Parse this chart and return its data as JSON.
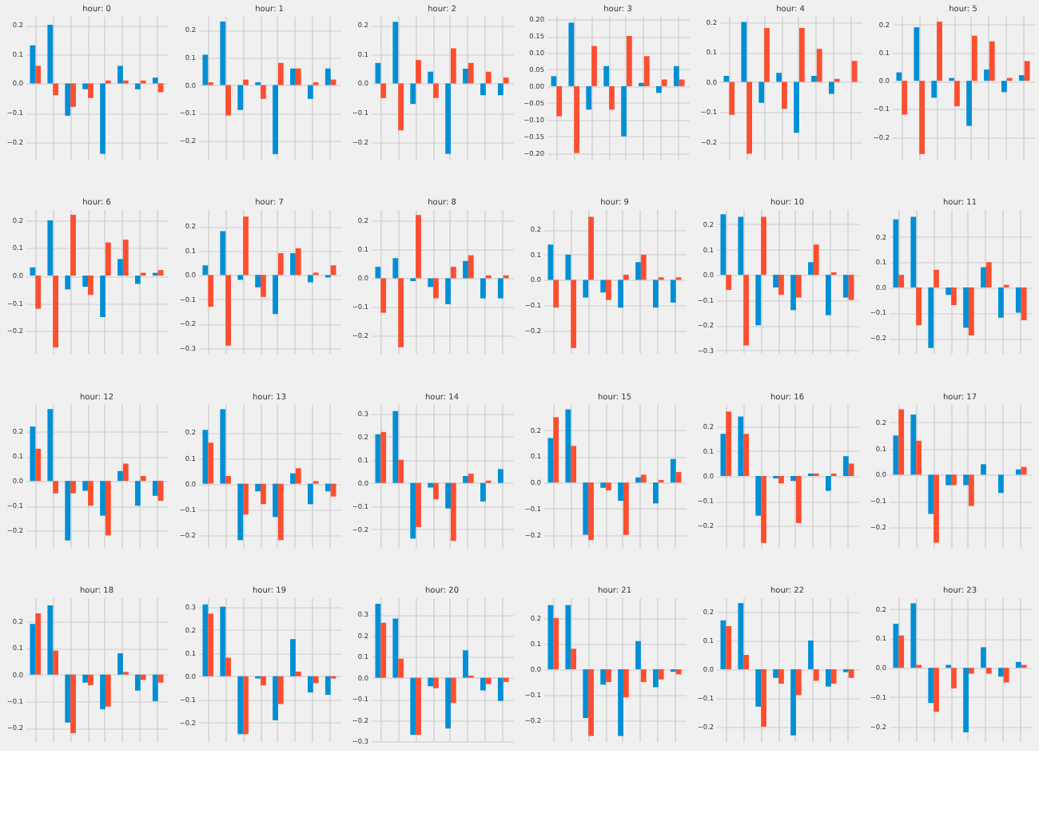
{
  "chart_data": [
    {
      "type": "bar",
      "title": "hour: 0",
      "categories": [
        null,
        null,
        null,
        null,
        null,
        null,
        null,
        null
      ],
      "series": [
        {
          "color": "#008fd5",
          "values": [
            0.13,
            0.2,
            -0.11,
            -0.02,
            -0.24,
            0.06,
            -0.02,
            0.02
          ]
        },
        {
          "color": "#fc4f30",
          "values": [
            0.06,
            -0.04,
            -0.08,
            -0.05,
            0.01,
            0.01,
            0.01,
            -0.03
          ]
        }
      ],
      "ylim": [
        -0.26,
        0.23
      ],
      "yticks": [
        {
          "value": -0.2,
          "label": "−0.2"
        },
        {
          "value": -0.1,
          "label": "−0.1"
        },
        {
          "value": 0,
          "label": "0.0"
        },
        0.1,
        0.2
      ],
      "grid": true
    },
    {
      "type": "bar",
      "title": "hour: 1",
      "categories": [
        null,
        null,
        null,
        null,
        null,
        null,
        null,
        null
      ],
      "series": [
        {
          "color": "#008fd5",
          "values": [
            0.11,
            0.23,
            -0.09,
            0.01,
            -0.25,
            0.06,
            -0.05,
            0.06
          ]
        },
        {
          "color": "#fc4f30",
          "values": [
            0.01,
            -0.11,
            0.02,
            -0.05,
            0.08,
            0.06,
            0.01,
            0.02
          ]
        }
      ],
      "ylim": [
        -0.27,
        0.25
      ],
      "yticks": [
        {
          "value": -0.2,
          "label": "−0.2"
        },
        {
          "value": -0.1,
          "label": "−0.1"
        },
        {
          "value": 0,
          "label": "0.0"
        },
        0.1,
        0.2
      ],
      "grid": true
    },
    {
      "type": "bar",
      "title": "hour: 2",
      "categories": [
        null,
        null,
        null,
        null,
        null,
        null,
        null,
        null
      ],
      "series": [
        {
          "color": "#008fd5",
          "values": [
            0.07,
            0.21,
            -0.07,
            0.04,
            -0.24,
            0.05,
            -0.04,
            -0.04
          ]
        },
        {
          "color": "#fc4f30",
          "values": [
            -0.05,
            -0.16,
            0.08,
            -0.05,
            0.12,
            0.07,
            0.04,
            0.02
          ]
        }
      ],
      "ylim": [
        -0.26,
        0.23
      ],
      "yticks": [
        {
          "value": -0.2,
          "label": "−0.2"
        },
        {
          "value": -0.1,
          "label": "−0.1"
        },
        {
          "value": 0,
          "label": "0.0"
        },
        0.1,
        0.2
      ],
      "grid": true
    },
    {
      "type": "bar",
      "title": "hour: 3",
      "categories": [
        null,
        null,
        null,
        null,
        null,
        null,
        null,
        null
      ],
      "series": [
        {
          "color": "#008fd5",
          "values": [
            0.03,
            0.19,
            -0.07,
            0.06,
            -0.15,
            0.01,
            -0.02,
            0.06
          ]
        },
        {
          "color": "#fc4f30",
          "values": [
            -0.09,
            -0.2,
            0.12,
            -0.07,
            0.15,
            0.09,
            0.02,
            0.02
          ]
        }
      ],
      "ylim": [
        -0.22,
        0.21
      ],
      "yticks": [
        {
          "value": -0.2,
          "label": "−0.20"
        },
        {
          "value": -0.15,
          "label": "−0.15"
        },
        {
          "value": -0.1,
          "label": "−0.10"
        },
        {
          "value": -0.05,
          "label": "−0.05"
        },
        {
          "value": 0,
          "label": "0.00"
        },
        0.05,
        {
          "value": 0.1,
          "label": "0.10"
        },
        0.15,
        {
          "value": 0.2,
          "label": "0.20"
        }
      ],
      "grid": true
    },
    {
      "type": "bar",
      "title": "hour: 4",
      "categories": [
        null,
        null,
        null,
        null,
        null,
        null,
        null,
        null
      ],
      "series": [
        {
          "color": "#008fd5",
          "values": [
            0.02,
            0.2,
            -0.07,
            0.03,
            -0.17,
            0.02,
            -0.04,
            0
          ]
        },
        {
          "color": "#fc4f30",
          "values": [
            -0.11,
            -0.24,
            0.18,
            -0.09,
            0.18,
            0.11,
            0.01,
            0.07
          ]
        }
      ],
      "ylim": [
        -0.26,
        0.22
      ],
      "yticks": [
        {
          "value": -0.2,
          "label": "−0.2"
        },
        {
          "value": -0.1,
          "label": "−0.1"
        },
        {
          "value": 0,
          "label": "0.0"
        },
        0.1,
        0.2
      ],
      "grid": true
    },
    {
      "type": "bar",
      "title": "hour: 5",
      "categories": [
        null,
        null,
        null,
        null,
        null,
        null,
        null,
        null
      ],
      "series": [
        {
          "color": "#008fd5",
          "values": [
            0.03,
            0.19,
            -0.06,
            0.01,
            -0.16,
            0.04,
            -0.04,
            0.02
          ]
        },
        {
          "color": "#fc4f30",
          "values": [
            -0.12,
            -0.26,
            0.21,
            -0.09,
            0.16,
            0.14,
            0.01,
            0.07
          ]
        }
      ],
      "ylim": [
        -0.28,
        0.23
      ],
      "yticks": [
        {
          "value": -0.2,
          "label": "−0.2"
        },
        {
          "value": -0.1,
          "label": "−0.1"
        },
        {
          "value": 0,
          "label": "0.0"
        },
        0.1,
        0.2
      ],
      "grid": true
    },
    {
      "type": "bar",
      "title": "hour: 6",
      "categories": [
        null,
        null,
        null,
        null,
        null,
        null,
        null,
        null
      ],
      "series": [
        {
          "color": "#008fd5",
          "values": [
            0.03,
            0.2,
            -0.05,
            -0.04,
            -0.15,
            0.06,
            -0.03,
            0.01
          ]
        },
        {
          "color": "#fc4f30",
          "values": [
            -0.12,
            -0.26,
            0.22,
            -0.07,
            0.12,
            0.13,
            0.01,
            0.02
          ]
        }
      ],
      "ylim": [
        -0.28,
        0.24
      ],
      "yticks": [
        {
          "value": -0.2,
          "label": "−0.2"
        },
        {
          "value": -0.1,
          "label": "−0.1"
        },
        {
          "value": 0,
          "label": "0.0"
        },
        0.1,
        0.2
      ],
      "grid": true
    },
    {
      "type": "bar",
      "title": "hour: 7",
      "categories": [
        null,
        null,
        null,
        null,
        null,
        null,
        null,
        null
      ],
      "series": [
        {
          "color": "#008fd5",
          "values": [
            0.04,
            0.18,
            -0.02,
            -0.05,
            -0.16,
            0.09,
            -0.03,
            -0.01
          ]
        },
        {
          "color": "#fc4f30",
          "values": [
            -0.13,
            -0.29,
            0.24,
            -0.09,
            0.09,
            0.11,
            0.01,
            0.04
          ]
        }
      ],
      "ylim": [
        -0.32,
        0.27
      ],
      "yticks": [
        {
          "value": -0.3,
          "label": "−0.3"
        },
        {
          "value": -0.2,
          "label": "−0.2"
        },
        {
          "value": -0.1,
          "label": "−0.1"
        },
        {
          "value": 0,
          "label": "0.0"
        },
        0.1,
        0.2
      ],
      "grid": true
    },
    {
      "type": "bar",
      "title": "hour: 8",
      "categories": [
        null,
        null,
        null,
        null,
        null,
        null,
        null,
        null
      ],
      "series": [
        {
          "color": "#008fd5",
          "values": [
            0.04,
            0.07,
            -0.01,
            -0.03,
            -0.09,
            0.06,
            -0.07,
            -0.07
          ]
        },
        {
          "color": "#fc4f30",
          "values": [
            -0.12,
            -0.24,
            0.22,
            -0.07,
            0.04,
            0.08,
            0.01,
            0.01
          ]
        }
      ],
      "ylim": [
        -0.26,
        0.24
      ],
      "yticks": [
        {
          "value": -0.2,
          "label": "−0.2"
        },
        {
          "value": -0.1,
          "label": "−0.1"
        },
        {
          "value": 0,
          "label": "0.0"
        },
        0.1,
        0.2
      ],
      "grid": true
    },
    {
      "type": "bar",
      "title": "hour: 9",
      "categories": [
        null,
        null,
        null,
        null,
        null,
        null,
        null,
        null
      ],
      "series": [
        {
          "color": "#008fd5",
          "values": [
            0.14,
            0.1,
            -0.07,
            -0.05,
            -0.11,
            0.07,
            -0.11,
            -0.09
          ]
        },
        {
          "color": "#fc4f30",
          "values": [
            -0.11,
            -0.27,
            0.25,
            -0.08,
            0.02,
            0.1,
            0.01,
            0.01
          ]
        }
      ],
      "ylim": [
        -0.29,
        0.28
      ],
      "yticks": [
        {
          "value": -0.2,
          "label": "−0.2"
        },
        {
          "value": -0.1,
          "label": "−0.1"
        },
        {
          "value": 0,
          "label": "0.0"
        },
        0.1,
        0.2
      ],
      "grid": true
    },
    {
      "type": "bar",
      "title": "hour: 10",
      "categories": [
        null,
        null,
        null,
        null,
        null,
        null,
        null,
        null
      ],
      "series": [
        {
          "color": "#008fd5",
          "values": [
            0.24,
            0.23,
            -0.2,
            -0.05,
            -0.14,
            0.05,
            -0.16,
            -0.09
          ]
        },
        {
          "color": "#fc4f30",
          "values": [
            -0.06,
            -0.28,
            0.23,
            -0.08,
            -0.09,
            0.12,
            0.01,
            -0.1
          ]
        }
      ],
      "ylim": [
        -0.31,
        0.26
      ],
      "yticks": [
        {
          "value": -0.3,
          "label": "−0.3"
        },
        {
          "value": -0.2,
          "label": "−0.2"
        },
        {
          "value": -0.1,
          "label": "−0.1"
        },
        {
          "value": 0,
          "label": "0.0"
        },
        0.1,
        0.2
      ],
      "grid": true
    },
    {
      "type": "bar",
      "title": "hour: 11",
      "categories": [
        null,
        null,
        null,
        null,
        null,
        null,
        null,
        null
      ],
      "series": [
        {
          "color": "#008fd5",
          "values": [
            0.27,
            0.28,
            -0.24,
            -0.03,
            -0.16,
            0.08,
            -0.12,
            -0.1
          ]
        },
        {
          "color": "#fc4f30",
          "values": [
            0.05,
            -0.15,
            0.07,
            -0.07,
            -0.19,
            0.1,
            0.01,
            -0.13
          ]
        }
      ],
      "ylim": [
        -0.26,
        0.31
      ],
      "yticks": [
        {
          "value": -0.2,
          "label": "−0.2"
        },
        {
          "value": -0.1,
          "label": "−0.1"
        },
        {
          "value": 0,
          "label": "0.0"
        },
        0.1,
        0.2
      ],
      "grid": true
    },
    {
      "type": "bar",
      "title": "hour: 12",
      "categories": [
        null,
        null,
        null,
        null,
        null,
        null,
        null,
        null
      ],
      "series": [
        {
          "color": "#008fd5",
          "values": [
            0.22,
            0.29,
            -0.24,
            -0.04,
            -0.14,
            0.04,
            -0.1,
            -0.06
          ]
        },
        {
          "color": "#fc4f30",
          "values": [
            0.13,
            -0.05,
            -0.05,
            -0.1,
            -0.22,
            0.07,
            0.02,
            -0.08
          ]
        }
      ],
      "ylim": [
        -0.27,
        0.31
      ],
      "yticks": [
        {
          "value": -0.2,
          "label": "−0.2"
        },
        {
          "value": -0.1,
          "label": "−0.1"
        },
        {
          "value": 0,
          "label": "0.0"
        },
        0.1,
        0.2
      ],
      "grid": true
    },
    {
      "type": "bar",
      "title": "hour: 13",
      "categories": [
        null,
        null,
        null,
        null,
        null,
        null,
        null,
        null
      ],
      "series": [
        {
          "color": "#008fd5",
          "values": [
            0.21,
            0.29,
            -0.22,
            -0.03,
            -0.13,
            0.04,
            -0.08,
            -0.03
          ]
        },
        {
          "color": "#fc4f30",
          "values": [
            0.16,
            0.03,
            -0.12,
            -0.08,
            -0.22,
            0.06,
            0.01,
            -0.05
          ]
        }
      ],
      "ylim": [
        -0.25,
        0.31
      ],
      "yticks": [
        {
          "value": -0.2,
          "label": "−0.2"
        },
        {
          "value": -0.1,
          "label": "−0.1"
        },
        {
          "value": 0,
          "label": "0.0"
        },
        0.1,
        0.2
      ],
      "grid": true
    },
    {
      "type": "bar",
      "title": "hour: 14",
      "categories": [
        null,
        null,
        null,
        null,
        null,
        null,
        null,
        null
      ],
      "series": [
        {
          "color": "#008fd5",
          "values": [
            0.21,
            0.31,
            -0.24,
            -0.02,
            -0.11,
            0.03,
            -0.08,
            0.06
          ]
        },
        {
          "color": "#fc4f30",
          "values": [
            0.22,
            0.1,
            -0.19,
            -0.07,
            -0.25,
            0.04,
            0.01,
            0
          ]
        }
      ],
      "ylim": [
        -0.28,
        0.34
      ],
      "yticks": [
        {
          "value": -0.2,
          "label": "−0.2"
        },
        {
          "value": -0.1,
          "label": "−0.1"
        },
        {
          "value": 0,
          "label": "0.0"
        },
        0.1,
        0.2,
        0.3
      ],
      "grid": true
    },
    {
      "type": "bar",
      "title": "hour: 15",
      "categories": [
        null,
        null,
        null,
        null,
        null,
        null,
        null,
        null
      ],
      "series": [
        {
          "color": "#008fd5",
          "values": [
            0.17,
            0.28,
            -0.2,
            -0.02,
            -0.07,
            0.02,
            -0.08,
            0.09
          ]
        },
        {
          "color": "#fc4f30",
          "values": [
            0.25,
            0.14,
            -0.22,
            -0.03,
            -0.2,
            0.03,
            0.01,
            0.04
          ]
        }
      ],
      "ylim": [
        -0.25,
        0.3
      ],
      "yticks": [
        {
          "value": -0.2,
          "label": "−0.2"
        },
        {
          "value": -0.1,
          "label": "−0.1"
        },
        {
          "value": 0,
          "label": "0.0"
        },
        0.1,
        0.2
      ],
      "grid": true
    },
    {
      "type": "bar",
      "title": "hour: 16",
      "categories": [
        null,
        null,
        null,
        null,
        null,
        null,
        null,
        null
      ],
      "series": [
        {
          "color": "#008fd5",
          "values": [
            0.17,
            0.24,
            -0.16,
            -0.01,
            -0.02,
            0.01,
            -0.06,
            0.08
          ]
        },
        {
          "color": "#fc4f30",
          "values": [
            0.26,
            0.17,
            -0.27,
            -0.03,
            -0.19,
            0.01,
            0.01,
            0.05
          ]
        }
      ],
      "ylim": [
        -0.29,
        0.29
      ],
      "yticks": [
        {
          "value": -0.2,
          "label": "−0.2"
        },
        {
          "value": -0.1,
          "label": "−0.1"
        },
        {
          "value": 0,
          "label": "0.0"
        },
        0.1,
        0.2
      ],
      "grid": true
    },
    {
      "type": "bar",
      "title": "hour: 17",
      "categories": [
        null,
        null,
        null,
        null,
        null,
        null,
        null,
        null
      ],
      "series": [
        {
          "color": "#008fd5",
          "values": [
            0.15,
            0.23,
            -0.15,
            -0.04,
            -0.04,
            0.04,
            -0.07,
            0.02
          ]
        },
        {
          "color": "#fc4f30",
          "values": [
            0.25,
            0.13,
            -0.26,
            -0.04,
            -0.12,
            0,
            0,
            0.03
          ]
        }
      ],
      "ylim": [
        -0.28,
        0.27
      ],
      "yticks": [
        {
          "value": -0.2,
          "label": "−0.2"
        },
        {
          "value": -0.1,
          "label": "−0.1"
        },
        {
          "value": 0,
          "label": "0.0"
        },
        0.1,
        0.2
      ],
      "grid": true
    },
    {
      "type": "bar",
      "title": "hour: 18",
      "categories": [
        null,
        null,
        null,
        null,
        null,
        null,
        null,
        null
      ],
      "series": [
        {
          "color": "#008fd5",
          "values": [
            0.19,
            0.26,
            -0.18,
            -0.03,
            -0.13,
            0.08,
            -0.06,
            -0.1
          ]
        },
        {
          "color": "#fc4f30",
          "values": [
            0.23,
            0.09,
            -0.22,
            -0.04,
            -0.12,
            0.01,
            -0.02,
            -0.03
          ]
        }
      ],
      "ylim": [
        -0.25,
        0.29
      ],
      "yticks": [
        {
          "value": -0.2,
          "label": "−0.2"
        },
        {
          "value": -0.1,
          "label": "−0.1"
        },
        {
          "value": 0,
          "label": "0.0"
        },
        0.1,
        0.2
      ],
      "grid": true
    },
    {
      "type": "bar",
      "title": "hour: 19",
      "categories": [
        null,
        null,
        null,
        null,
        null,
        null,
        null,
        null
      ],
      "series": [
        {
          "color": "#008fd5",
          "values": [
            0.31,
            0.3,
            -0.25,
            -0.01,
            -0.19,
            0.16,
            -0.07,
            -0.08
          ]
        },
        {
          "color": "#fc4f30",
          "values": [
            0.27,
            0.08,
            -0.25,
            -0.04,
            -0.12,
            0.02,
            -0.03,
            -0.01
          ]
        }
      ],
      "ylim": [
        -0.28,
        0.34
      ],
      "yticks": [
        {
          "value": -0.2,
          "label": "−0.2"
        },
        {
          "value": -0.1,
          "label": "−0.1"
        },
        {
          "value": 0,
          "label": "0.0"
        },
        0.1,
        0.2,
        0.3
      ],
      "grid": true
    },
    {
      "type": "bar",
      "title": "hour: 20",
      "categories": [
        null,
        null,
        null,
        null,
        null,
        null,
        null,
        null
      ],
      "series": [
        {
          "color": "#008fd5",
          "values": [
            0.35,
            0.28,
            -0.27,
            -0.04,
            -0.24,
            0.13,
            -0.06,
            -0.11
          ]
        },
        {
          "color": "#fc4f30",
          "values": [
            0.26,
            0.09,
            -0.27,
            -0.05,
            -0.12,
            0.01,
            -0.03,
            -0.02
          ]
        }
      ],
      "ylim": [
        -0.3,
        0.38
      ],
      "yticks": [
        {
          "value": -0.3,
          "label": "−0.3"
        },
        {
          "value": -0.2,
          "label": "−0.2"
        },
        {
          "value": -0.1,
          "label": "−0.1"
        },
        {
          "value": 0,
          "label": "0.0"
        },
        0.1,
        0.2,
        0.3
      ],
      "grid": true
    },
    {
      "type": "bar",
      "title": "hour: 21",
      "categories": [
        null,
        null,
        null,
        null,
        null,
        null,
        null,
        null
      ],
      "series": [
        {
          "color": "#008fd5",
          "values": [
            0.25,
            0.25,
            -0.19,
            -0.06,
            -0.26,
            0.11,
            -0.07,
            -0.01
          ]
        },
        {
          "color": "#fc4f30",
          "values": [
            0.2,
            0.08,
            -0.26,
            -0.05,
            -0.11,
            -0.05,
            -0.04,
            -0.02
          ]
        }
      ],
      "ylim": [
        -0.28,
        0.28
      ],
      "yticks": [
        {
          "value": -0.2,
          "label": "−0.2"
        },
        {
          "value": -0.1,
          "label": "−0.1"
        },
        {
          "value": 0,
          "label": "0.0"
        },
        0.1,
        0.2
      ],
      "grid": true
    },
    {
      "type": "bar",
      "title": "hour: 22",
      "categories": [
        null,
        null,
        null,
        null,
        null,
        null,
        null,
        null
      ],
      "series": [
        {
          "color": "#008fd5",
          "values": [
            0.17,
            0.23,
            -0.13,
            -0.03,
            -0.23,
            0.1,
            -0.06,
            -0.01
          ]
        },
        {
          "color": "#fc4f30",
          "values": [
            0.15,
            0.05,
            -0.2,
            -0.05,
            -0.09,
            -0.04,
            -0.05,
            -0.03
          ]
        }
      ],
      "ylim": [
        -0.25,
        0.25
      ],
      "yticks": [
        {
          "value": -0.2,
          "label": "−0.2"
        },
        {
          "value": -0.1,
          "label": "−0.1"
        },
        {
          "value": 0,
          "label": "0.0"
        },
        0.1,
        0.2
      ],
      "grid": true
    },
    {
      "type": "bar",
      "title": "hour: 23",
      "categories": [
        null,
        null,
        null,
        null,
        null,
        null,
        null,
        null
      ],
      "series": [
        {
          "color": "#008fd5",
          "values": [
            0.15,
            0.22,
            -0.12,
            0.01,
            -0.22,
            0.07,
            -0.03,
            0.02
          ]
        },
        {
          "color": "#fc4f30",
          "values": [
            0.11,
            0.01,
            -0.15,
            -0.07,
            -0.02,
            -0.02,
            -0.05,
            0.01
          ]
        }
      ],
      "ylim": [
        -0.25,
        0.24
      ],
      "yticks": [
        {
          "value": -0.2,
          "label": "−0.2"
        },
        {
          "value": -0.1,
          "label": "−0.1"
        },
        {
          "value": 0,
          "label": "0.0"
        },
        0.1,
        0.2
      ],
      "grid": true
    }
  ]
}
